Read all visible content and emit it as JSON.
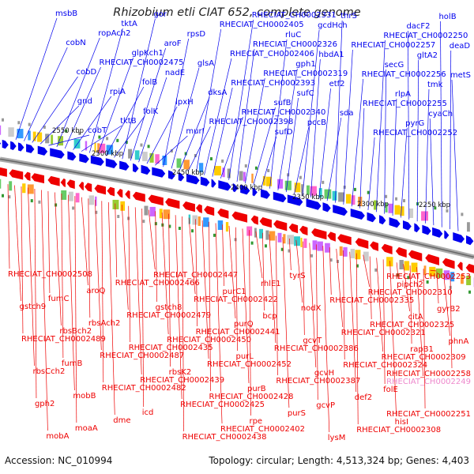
{
  "title": "Rhizobium etli CIAT 652, complete genome",
  "accession": "Accession: NC_010994",
  "topology": "Topology: circular; Length: 4,513,324 bp; Genes: 4,403",
  "ticks": [
    "2550 kbp",
    "2500 kbp",
    "2450 kbp",
    "2400 kbp",
    "2350 kbp",
    "2300 kbp",
    "2250 kbp"
  ],
  "colors": {
    "forward": "#0000ee",
    "reverse": "#ee0000",
    "highlight": "#ee88cc",
    "backbone": "#888888"
  },
  "top_labels": [
    "msbB",
    "cobN",
    "cobD",
    "gnd",
    "cobT",
    "ropAch2",
    "RHECIAT_CH0002475",
    "rpiA",
    "tktB",
    "tktA",
    "glpKch1",
    "folB",
    "folK",
    "gor",
    "aroF",
    "nadE",
    "lpxH",
    "murI",
    "rpsD",
    "glsA",
    "dksA",
    "RHECIAT_CH0002398",
    "RHECIAT_CH0002405",
    "RHECIAT_CH0002406",
    "RHECIAT_CH0002393",
    "RHECIAT_CH0002340",
    "RHECIAT_CH0002331",
    "RHECIAT_CH0002326",
    "RHECIAT_CH0002319",
    "sufB",
    "sufD",
    "rluC",
    "gph1",
    "sufC",
    "pccB",
    "gcdHch",
    "hbdA1",
    "etf2",
    "sda",
    "thrS",
    "RHECIAT_CH0002257",
    "RHECIAT_CH0002256",
    "RHECIAT_CH0002255",
    "RHECIAT_CH0002252",
    "RHECIAT_CH0002250",
    "secG",
    "rlpA",
    "pyrG",
    "dacF2",
    "gltA2",
    "tmk",
    "cyaCh",
    "holB",
    "deaD",
    "metS"
  ],
  "bottom_labels": [
    "RHECIAT_CH0002508",
    "gstch9",
    "RHECIAT_CH0002489",
    "rbsCch2",
    "gph2",
    "mobA",
    "fumC",
    "rbsBch2",
    "fumB",
    "mobB",
    "moaA",
    "aroQ",
    "rbsAch2",
    "RHECIAT_CH0002487",
    "RHECIAT_CH0002482",
    "dme",
    "RHECIAT_CH0002466",
    "RHECIAT_CH0002479",
    "RHECIAT_CH0002435",
    "RHECIAT_CH0002439",
    "icd",
    "RHECIAT_CH0002447",
    "gstch8",
    "RHECIAT_CH0002450",
    "rbsK2",
    "RHECIAT_CH0002425",
    "RHECIAT_CH0002438",
    "RHECIAT_CH0002422",
    "RHECIAT_CH0002441",
    "RHECIAT_CH0002452",
    "RHECIAT_CH0002428",
    "RHECIAT_CH0002402",
    "purC1",
    "purQ",
    "purL",
    "purB",
    "rpe",
    "rhlE1",
    "bcp",
    "RHECIAT_CH0002386",
    "RHECIAT_CH0002387",
    "purS",
    "tyrS",
    "nodX",
    "gcvT",
    "gcvH",
    "gcvP",
    "lysM",
    "RHECIAT_CH0002335",
    "RHECIAT_CH0002321",
    "RHECIAT_CH0002324",
    "def2",
    "RHECIAT_CH0002308",
    "RHECIAT_CH0002310",
    "RHECIAT_CH0002325",
    "RHECIAT_CH0002309",
    "folE",
    "hisI",
    "pipch2",
    "citA",
    "rapB1",
    "RHECIAT_CH0002249",
    "RHECIAT_CH0002251",
    "RHECIAT_CH0002253",
    "gyrB2",
    "phnA",
    "RHECIAT_CH0002258"
  ],
  "highlight_label": "RHECIAT_CH0002249"
}
